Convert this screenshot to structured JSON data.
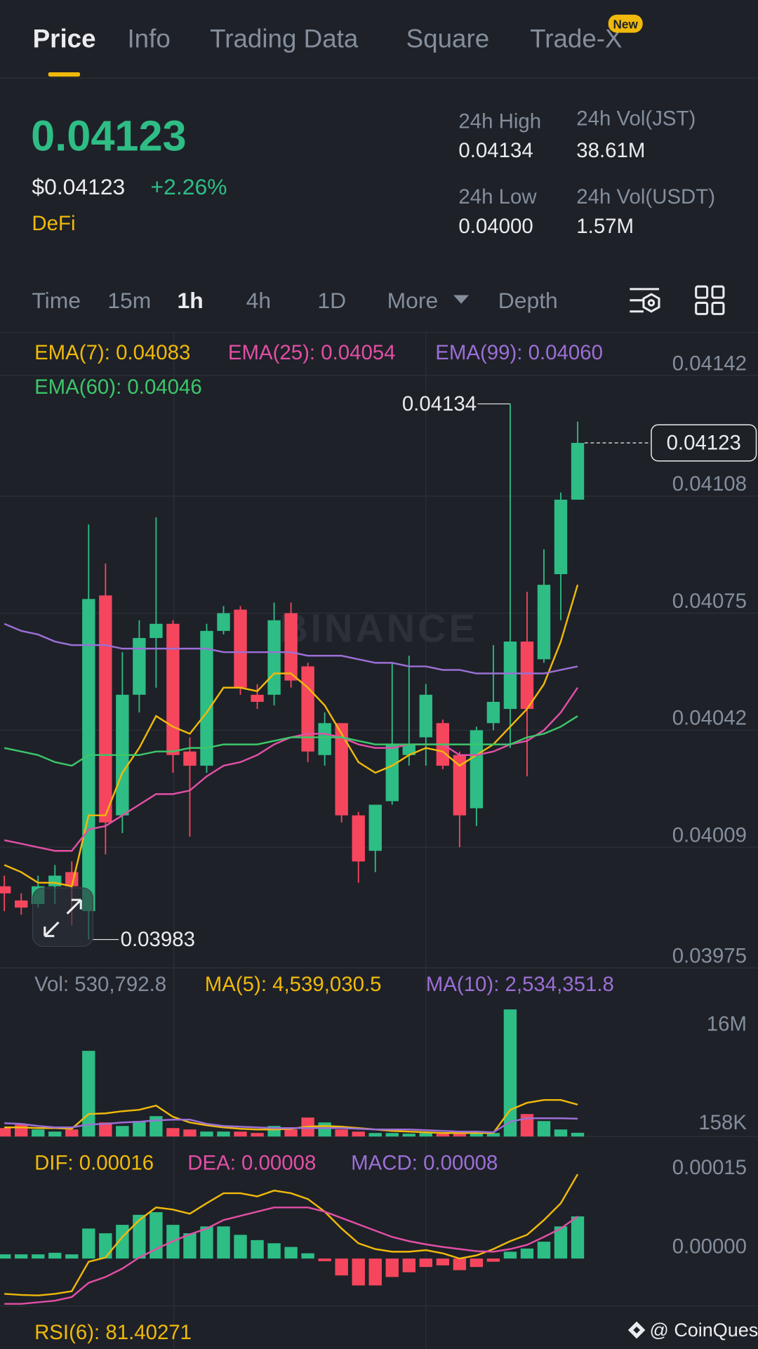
{
  "tabs": [
    "Price",
    "Info",
    "Trading Data",
    "Square",
    "Trade-X"
  ],
  "tab_badge": "New",
  "ticker": {
    "price": "0.04123",
    "usd": "$0.04123",
    "change": "+2.26%",
    "tag": "DeFi"
  },
  "stats": [
    {
      "label": "24h High",
      "value": "0.04134"
    },
    {
      "label": "24h Vol(JST)",
      "value": "38.61M"
    },
    {
      "label": "24h Low",
      "value": "0.04000"
    },
    {
      "label": "24h Vol(USDT)",
      "value": "1.57M"
    }
  ],
  "intervals": [
    "Time",
    "15m",
    "1h",
    "4h",
    "1D",
    "More",
    "Depth"
  ],
  "brand_watermark": "BINANCE",
  "rsi_label": "RSI(6): 81.40271",
  "watermark": "@ CoinQuest",
  "chart_data": [
    {
      "type": "candlestick",
      "up_color": "#2ebd85",
      "down_color": "#f6465d",
      "open": [
        0.03998,
        0.03994,
        0.03993,
        0.03998,
        0.04002,
        0.03991,
        0.0408,
        0.04018,
        0.04052,
        0.04068,
        0.04072,
        0.04036,
        0.04032,
        0.0407,
        0.04076,
        0.04052,
        0.04052,
        0.04075,
        0.0406,
        0.04035,
        0.04044,
        0.04018,
        0.04008,
        0.04022,
        0.04035,
        0.0404,
        0.04044,
        0.04035,
        0.0402,
        0.04044,
        0.04048,
        0.04067,
        0.04062,
        0.04086,
        0.04107
      ],
      "high": [
        0.04001,
        0.03996,
        0.04001,
        0.04004,
        0.04005,
        0.041,
        0.04089,
        0.04064,
        0.04073,
        0.04102,
        0.04073,
        0.0404,
        0.04072,
        0.04077,
        0.04077,
        0.04055,
        0.04078,
        0.04078,
        0.04061,
        0.04047,
        0.04044,
        0.04019,
        0.04021,
        0.04061,
        0.04063,
        0.04055,
        0.04045,
        0.04036,
        0.04043,
        0.04066,
        0.04134,
        0.04081,
        0.04093,
        0.04109,
        0.04129
      ],
      "low": [
        0.03991,
        0.0399,
        0.03992,
        0.03993,
        0.03987,
        0.03983,
        0.04007,
        0.04013,
        0.04047,
        0.04054,
        0.0403,
        0.04012,
        0.0403,
        0.04069,
        0.04052,
        0.04048,
        0.04049,
        0.04054,
        0.04033,
        0.04032,
        0.04016,
        0.03999,
        0.04002,
        0.04021,
        0.04032,
        0.04032,
        0.04031,
        0.04009,
        0.04015,
        0.04042,
        0.04037,
        0.04029,
        0.04061,
        0.04073,
        0.04107
      ],
      "close": [
        0.03996,
        0.03992,
        0.03998,
        0.04001,
        0.03998,
        0.04079,
        0.04016,
        0.04052,
        0.04068,
        0.04072,
        0.04035,
        0.04032,
        0.0407,
        0.04075,
        0.04054,
        0.0405,
        0.04073,
        0.04056,
        0.04036,
        0.04044,
        0.04018,
        0.04005,
        0.04021,
        0.04038,
        0.04038,
        0.04052,
        0.04032,
        0.04018,
        0.04042,
        0.0405,
        0.04067,
        0.04048,
        0.04083,
        0.04107,
        0.04123
      ],
      "series": [
        {
          "label": "EMA(7): 0.04083",
          "color": "#f0b90b",
          "values": [
            0.04004,
            0.04002,
            0.03999,
            0.03999,
            0.03998,
            0.04018,
            0.04018,
            0.0403,
            0.04037,
            0.04046,
            0.04043,
            0.04041,
            0.04047,
            0.04054,
            0.04054,
            0.04053,
            0.04058,
            0.04058,
            0.04054,
            0.04049,
            0.04041,
            0.04033,
            0.0403,
            0.04032,
            0.04035,
            0.04037,
            0.04036,
            0.04032,
            0.04035,
            0.04038,
            0.04043,
            0.04048,
            0.04055,
            0.04067,
            0.04083
          ]
        },
        {
          "label": "EMA(25): 0.04054",
          "color": "#e24fa6",
          "values": [
            0.04011,
            0.0401,
            0.04009,
            0.04008,
            0.04008,
            0.04014,
            0.04015,
            0.04018,
            0.04021,
            0.04024,
            0.04024,
            0.04025,
            0.04029,
            0.04032,
            0.04033,
            0.04035,
            0.04038,
            0.0404,
            0.04041,
            0.04041,
            0.0404,
            0.04038,
            0.04037,
            0.04037,
            0.04038,
            0.04038,
            0.04038,
            0.04035,
            0.04035,
            0.04036,
            0.04038,
            0.04039,
            0.04042,
            0.04047,
            0.04054
          ]
        },
        {
          "label": "EMA(99): 0.04060",
          "color": "#9c6fd6",
          "values": [
            0.04072,
            0.0407,
            0.04069,
            0.04067,
            0.04066,
            0.04066,
            0.04066,
            0.04065,
            0.04065,
            0.04065,
            0.04065,
            0.04065,
            0.04065,
            0.04064,
            0.04064,
            0.04064,
            0.04064,
            0.04064,
            0.04063,
            0.04063,
            0.04063,
            0.04062,
            0.04061,
            0.04061,
            0.0406,
            0.0406,
            0.04059,
            0.04059,
            0.04058,
            0.04058,
            0.04058,
            0.04058,
            0.04058,
            0.04059,
            0.0406
          ]
        },
        {
          "label": "EMA(60): 0.04046",
          "color": "#3cc76a",
          "values": [
            0.04037,
            0.04036,
            0.04035,
            0.04033,
            0.04032,
            0.04035,
            0.04035,
            0.04035,
            0.04035,
            0.04036,
            0.04036,
            0.04037,
            0.04037,
            0.04038,
            0.04038,
            0.04038,
            0.04039,
            0.0404,
            0.0404,
            0.0404,
            0.0404,
            0.04039,
            0.04038,
            0.04038,
            0.04038,
            0.04038,
            0.04038,
            0.04038,
            0.04038,
            0.04038,
            0.04038,
            0.0404,
            0.04041,
            0.04043,
            0.04046
          ]
        }
      ],
      "ylim": [
        0.03975,
        0.04154
      ],
      "yticks": [
        0.04142,
        0.04108,
        0.04075,
        0.04042,
        0.04009,
        0.03975
      ],
      "grid": true
    },
    {
      "type": "bar",
      "label": "Vol: 530,792.8",
      "values": [
        1200000,
        1700000,
        1000000,
        700000,
        1000000,
        12200000,
        2000000,
        1500000,
        2200000,
        2900000,
        1200000,
        1000000,
        700000,
        700000,
        700000,
        500000,
        1500000,
        1000000,
        2700000,
        2000000,
        1000000,
        700000,
        500000,
        500000,
        400000,
        500000,
        400000,
        400000,
        500000,
        500000,
        18100000,
        3200000,
        2200000,
        1000000,
        530792.8
      ],
      "series": [
        {
          "label": "MA(5): 4,539,030.5",
          "color": "#f0b90b",
          "values": [
            1300000,
            1300000,
            1200000,
            1200000,
            1100000,
            3200000,
            3300000,
            3600000,
            3800000,
            4400000,
            2800000,
            2000000,
            1600000,
            1300000,
            1100000,
            1000000,
            1000000,
            1100000,
            1400000,
            1500000,
            1400000,
            1200000,
            1000000,
            800000,
            700000,
            600000,
            500000,
            500000,
            500000,
            500000,
            3800000,
            4800000,
            5200000,
            5200000,
            4539030.5
          ]
        },
        {
          "label": "MA(10): 2,534,351.8",
          "color": "#9c6fd6",
          "values": [
            1900000,
            1800000,
            1500000,
            1300000,
            1300000,
            1700000,
            1800000,
            2000000,
            2100000,
            2300000,
            2400000,
            2400000,
            1800000,
            1500000,
            1400000,
            1300000,
            1200000,
            1200000,
            1200000,
            1200000,
            1200000,
            1100000,
            1000000,
            1000000,
            1000000,
            900000,
            800000,
            700000,
            700000,
            600000,
            2100000,
            2600000,
            2600000,
            2600000,
            2534351.8
          ]
        }
      ],
      "ylim": [
        0,
        18500000
      ],
      "yticks": [
        {
          "value": 16000000,
          "label": "16M"
        },
        {
          "value": 158000,
          "label": "158K"
        }
      ]
    },
    {
      "type": "bar",
      "label": "MACD: 0.00008",
      "label_color": "#9c6fd6",
      "up_color": "#2ebd85",
      "down_color": "#f6465d",
      "values": [
        8e-06,
        8e-06,
        8e-06,
        1.1e-05,
        8e-06,
        5.7e-05,
        4.8e-05,
        6.4e-05,
        8.3e-05,
        8.8e-05,
        6.4e-05,
        4.8e-05,
        6.1e-05,
        6.1e-05,
        4.5e-05,
        3.5e-05,
        2.9e-05,
        2.2e-05,
        1e-05,
        -5e-06,
        -3.2e-05,
        -5.1e-05,
        -5.1e-05,
        -3.5e-05,
        -2.6e-05,
        -1.6e-05,
        -1.3e-05,
        -2.2e-05,
        -1.6e-05,
        -6e-06,
        1.3e-05,
        1.9e-05,
        3.2e-05,
        6.1e-05,
        8e-05
      ],
      "series": [
        {
          "label": "DIF: 0.00016",
          "color": "#f0b90b",
          "values": [
            -6.7e-05,
            -6.9e-05,
            -7e-05,
            -6.7e-05,
            -6.2e-05,
            -6e-06,
            2e-06,
            4.1e-05,
            7.3e-05,
            9.7e-05,
            9.3e-05,
            8.5e-05,
            0.000105,
            0.000124,
            0.000124,
            0.000118,
            0.000129,
            0.000124,
            0.000113,
            8.9e-05,
            5.7e-05,
            2.9e-05,
            1.8e-05,
            1.3e-05,
            1.3e-05,
            1.6e-05,
            1e-05,
            0,
            6e-06,
            1.8e-05,
            3.3e-05,
            4.5e-05,
            7.3e-05,
            0.000105,
            0.00016
          ]
        },
        {
          "label": "DEA: 0.00008",
          "color": "#e24fa6",
          "values": [
            -8.6e-05,
            -8.6e-05,
            -8.3e-05,
            -8e-05,
            -7.3e-05,
            -4.6e-05,
            -3.5e-05,
            -1.9e-05,
            2e-06,
            1.8e-05,
            3.3e-05,
            4.6e-05,
            5.7e-05,
            7.3e-05,
            8.1e-05,
            8.9e-05,
            9.7e-05,
            9.7e-05,
            9.7e-05,
            8.9e-05,
            7.7e-05,
            6.5e-05,
            5.3e-05,
            4.1e-05,
            3.3e-05,
            2.7e-05,
            2.2e-05,
            1.8e-05,
            1.4e-05,
            1.3e-05,
            1.8e-05,
            2.6e-05,
            4.1e-05,
            5.7e-05,
            8e-05
          ]
        }
      ],
      "ylim": [
        -9e-05,
        0.00023
      ],
      "yticks": [
        0.00015,
        {
          "value": 0,
          "label": "0.00000"
        }
      ]
    }
  ]
}
